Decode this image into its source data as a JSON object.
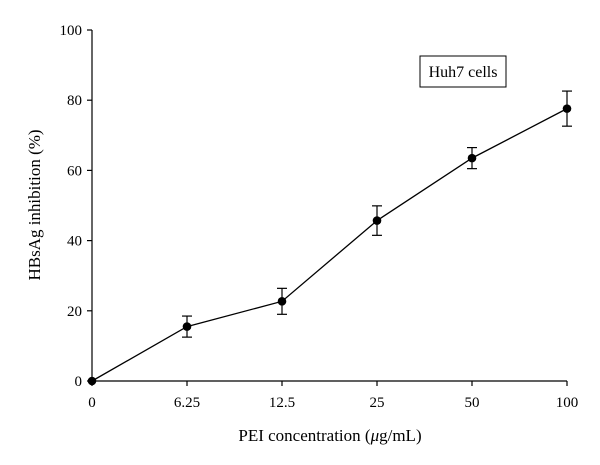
{
  "chart_data": {
    "type": "line",
    "title": "",
    "xlabel_prefix": "PEI concentration (",
    "xlabel_unit_mu": "μ",
    "xlabel_suffix": "g/mL)",
    "ylabel": "HBsAg inhibition (%)",
    "annotation": "Huh7 cells",
    "categories": [
      "0",
      "6.25",
      "12.5",
      "25",
      "50",
      "100"
    ],
    "yticks": [
      0,
      20,
      40,
      60,
      80,
      100
    ],
    "ylim": [
      0,
      100
    ],
    "grid": false,
    "series": [
      {
        "values": [
          0,
          15.5,
          22.7,
          45.7,
          63.5,
          77.6
        ],
        "errors": [
          0,
          3.0,
          3.7,
          4.2,
          3.0,
          5.0
        ]
      }
    ],
    "colors": {
      "line": "#000000",
      "marker": "#000000",
      "axis": "#000000",
      "background": "#ffffff"
    }
  }
}
